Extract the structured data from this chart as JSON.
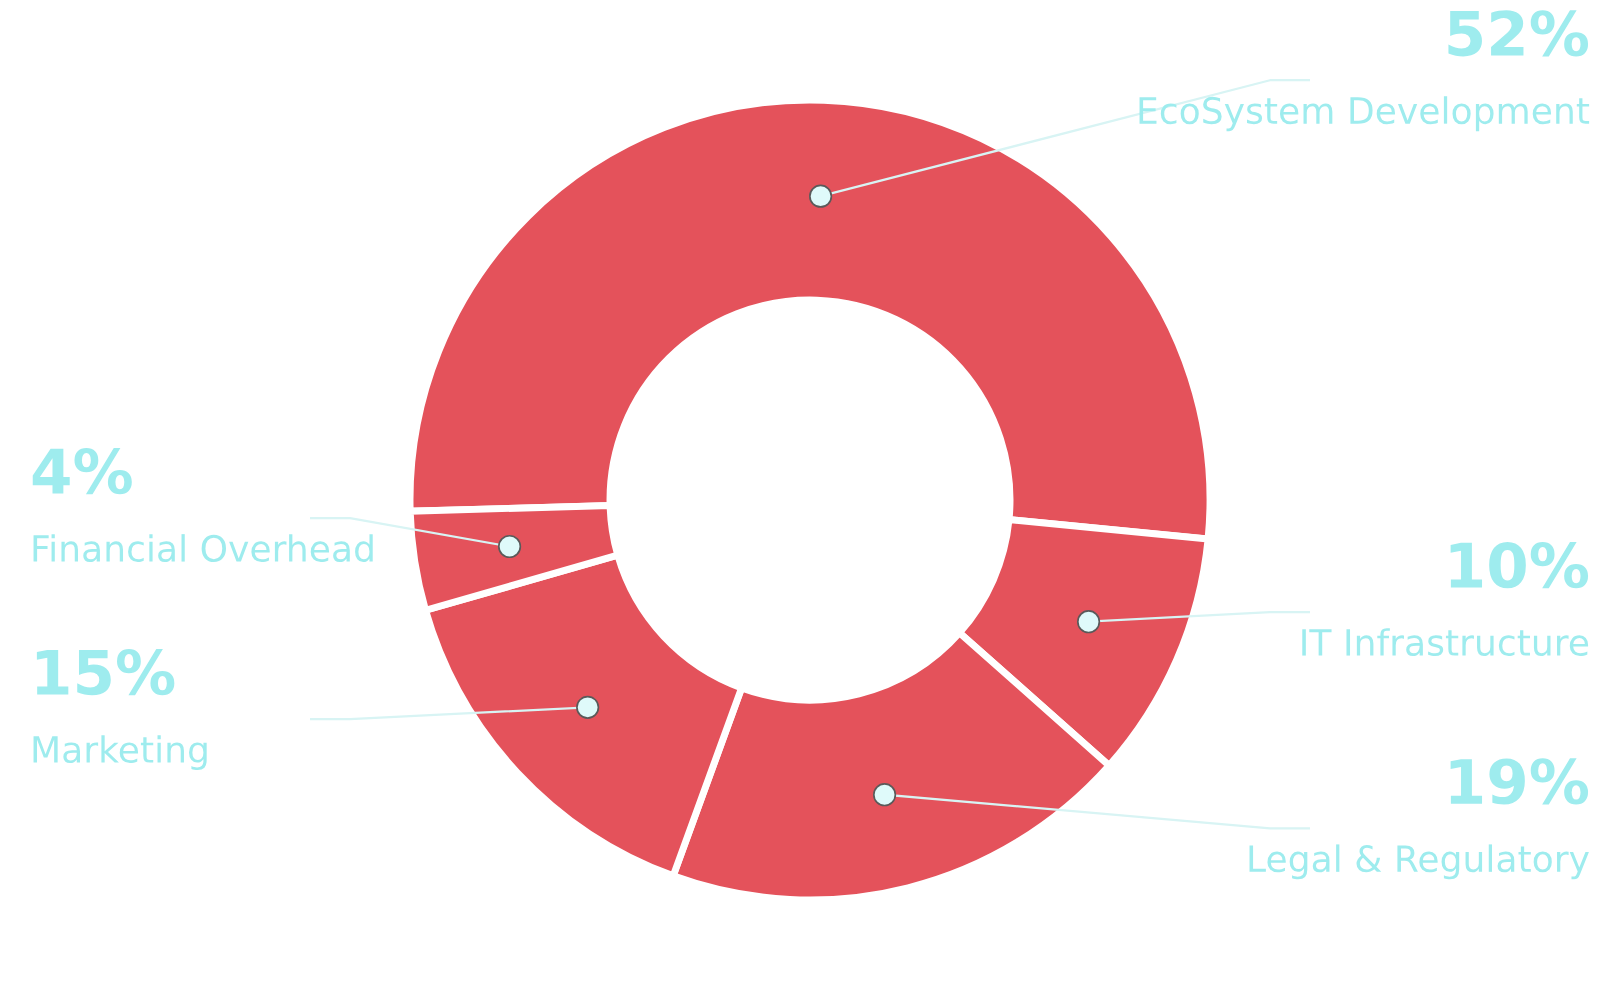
{
  "chart_data": {
    "type": "donut",
    "categories": [
      "EcoSystem Development",
      "IT Infrastructure",
      "Legal & Regulatory",
      "Marketing",
      "Financial Overhead"
    ],
    "values": [
      52,
      10,
      19,
      15,
      4
    ],
    "colors": [
      "#e4525b",
      "#e4525b",
      "#e4525b",
      "#e4525b",
      "#e4525b"
    ],
    "value_labels": [
      "52%",
      "10%",
      "19%",
      "15%",
      "4%"
    ]
  }
}
